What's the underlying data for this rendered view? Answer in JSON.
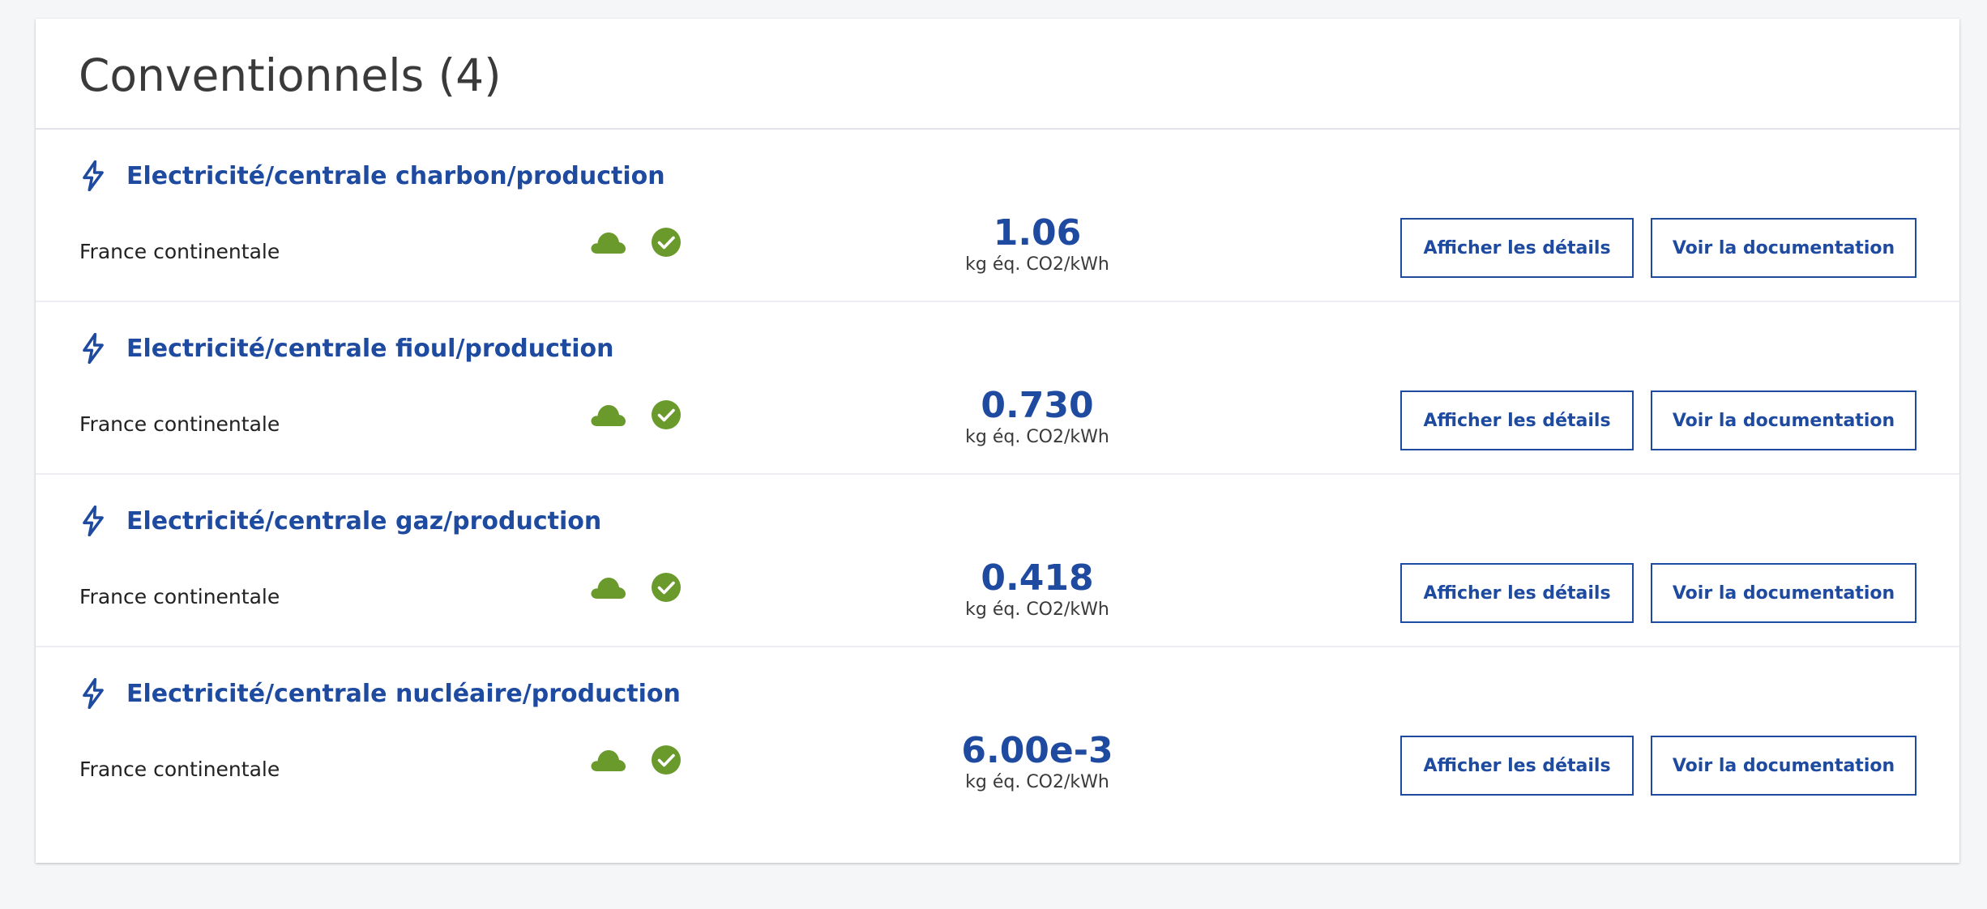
{
  "section": {
    "title": "Conventionnels (4)"
  },
  "colors": {
    "accent": "#1e4aa0",
    "status_green": "#6a9a2c"
  },
  "icons": {
    "row_icon": "lightning-bolt-icon",
    "source_icon": "cloud-icon",
    "validated_icon": "check-circle-icon"
  },
  "items": [
    {
      "title": "Electricité/centrale charbon/production",
      "location": "France continentale",
      "value": "1.06",
      "unit": "kg éq. CO2/kWh",
      "details_label": "Afficher les détails",
      "doc_label": "Voir la documentation"
    },
    {
      "title": "Electricité/centrale fioul/production",
      "location": "France continentale",
      "value": "0.730",
      "unit": "kg éq. CO2/kWh",
      "details_label": "Afficher les détails",
      "doc_label": "Voir la documentation"
    },
    {
      "title": "Electricité/centrale gaz/production",
      "location": "France continentale",
      "value": "0.418",
      "unit": "kg éq. CO2/kWh",
      "details_label": "Afficher les détails",
      "doc_label": "Voir la documentation"
    },
    {
      "title": "Electricité/centrale nucléaire/production",
      "location": "France continentale",
      "value": "6.00e-3",
      "unit": "kg éq. CO2/kWh",
      "details_label": "Afficher les détails",
      "doc_label": "Voir la documentation"
    }
  ]
}
